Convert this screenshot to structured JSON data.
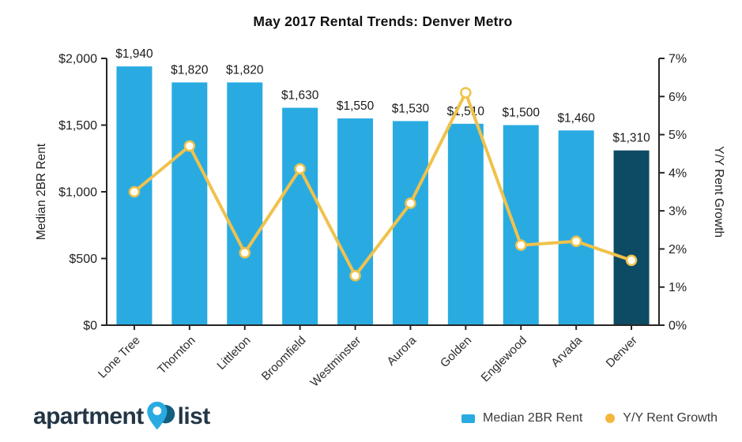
{
  "title": "May 2017 Rental Trends: Denver Metro",
  "chart_data": {
    "type": "bar",
    "title": "May 2017 Rental Trends: Denver Metro",
    "categories": [
      "Lone Tree",
      "Thornton",
      "Littleton",
      "Broomfield",
      "Westminster",
      "Aurora",
      "Golden",
      "Englewood",
      "Arvada",
      "Denver"
    ],
    "series": [
      {
        "name": "Median 2BR Rent",
        "type": "bar",
        "axis": "left",
        "color": "#29ABE2",
        "highlight_index": 9,
        "highlight_color": "#0D4A63",
        "values": [
          1940,
          1820,
          1820,
          1630,
          1550,
          1530,
          1510,
          1500,
          1460,
          1310
        ],
        "value_labels": [
          "$1,940",
          "$1,820",
          "$1,820",
          "$1,630",
          "$1,550",
          "$1,530",
          "$1,510",
          "$1,500",
          "$1,460",
          "$1,310"
        ]
      },
      {
        "name": "Y/Y Rent Growth",
        "type": "line",
        "axis": "right",
        "color": "#F0C24B",
        "marker_fill": "#FFFEF7",
        "values": [
          3.5,
          4.7,
          1.9,
          4.1,
          1.3,
          3.2,
          6.1,
          2.1,
          2.2,
          1.7
        ]
      }
    ],
    "axes": {
      "left": {
        "label": "Median 2BR Rent",
        "min": 0,
        "max": 2000,
        "tick_values": [
          0,
          500,
          1000,
          1500,
          2000
        ],
        "tick_labels": [
          "$0",
          "$500",
          "$1,000",
          "$1,500",
          "$2,000"
        ]
      },
      "right": {
        "label": "Y/Y Rent Growth",
        "min": 0,
        "max": 7,
        "tick_values": [
          0,
          1,
          2,
          3,
          4,
          5,
          6,
          7
        ],
        "tick_labels": [
          "0%",
          "1%",
          "2%",
          "3%",
          "4%",
          "5%",
          "6%",
          "7%"
        ]
      }
    },
    "legend": {
      "position": "bottom-right",
      "items": [
        {
          "label": "Median 2BR Rent",
          "swatch": "square",
          "color": "#29ABE2"
        },
        {
          "label": "Y/Y Rent Growth",
          "swatch": "circle",
          "color": "#F5B63E"
        }
      ]
    },
    "grid": false
  },
  "branding": {
    "logo_text_left": "apartment",
    "logo_text_right": "list",
    "text_color": "#233646",
    "pin_colors": {
      "pin": "#29ABE2",
      "back": "#12607E",
      "hole": "#FFFFFF"
    }
  },
  "colors": {
    "axis": "#262626",
    "tick_text": "#1f1f1f",
    "value_text": "#1a1a1a",
    "category_text": "#2b2b2b"
  }
}
